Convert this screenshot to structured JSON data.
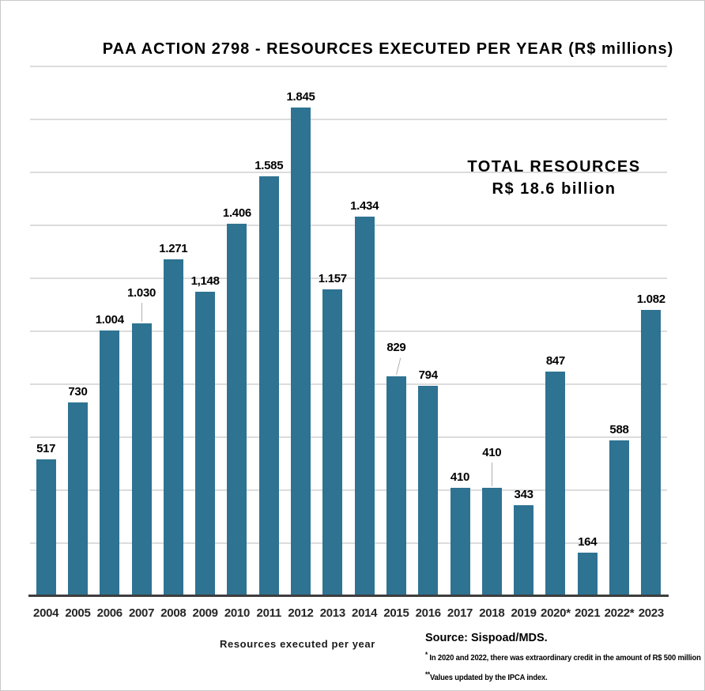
{
  "chart_data": {
    "type": "bar",
    "title": "PAA ACTION 2798 - RESOURCES EXECUTED PER YEAR (R$ millions)",
    "xlabel": "Resources executed per year",
    "ylabel": "",
    "ylim": [
      0,
      2000
    ],
    "gridline_step": 200,
    "grid": true,
    "legend_position": "none",
    "bar_color": "#2e7392",
    "categories": [
      "2004",
      "2005",
      "2006",
      "2007",
      "2008",
      "2009",
      "2010",
      "2011",
      "2012",
      "2013",
      "2014",
      "2015",
      "2016",
      "2017",
      "2018",
      "2019",
      "2020*",
      "2021",
      "2022*",
      "2023"
    ],
    "values": [
      517,
      730,
      1004,
      1030,
      1271,
      1148,
      1406,
      1585,
      1845,
      1157,
      1434,
      829,
      794,
      410,
      410,
      343,
      847,
      164,
      588,
      1082
    ],
    "value_labels": [
      "517",
      "730",
      "1.004",
      "1.030",
      "1.271",
      "1,148",
      "1.406",
      "1.585",
      "1.845",
      "1.157",
      "1.434",
      "829",
      "794",
      "410",
      "410",
      "343",
      "847",
      "164",
      "588",
      "1.082"
    ],
    "leader_lines": {
      "3": 24,
      "11": 22,
      "14": 30
    },
    "total_annotation": "TOTAL RESOURCES R$ 18.6 billion"
  },
  "annotation": {
    "line1": "TOTAL RESOURCES",
    "line2": "R$ 18.6 billion"
  },
  "notes": {
    "source": "Source: Sispoad/MDS.",
    "footnotes": [
      {
        "sup": "*",
        "text": " In 2020 and 2022, there was extraordinary credit in the amount of R$ 500 million"
      },
      {
        "sup": "**",
        "text": "Values updated by the IPCA index."
      }
    ]
  }
}
